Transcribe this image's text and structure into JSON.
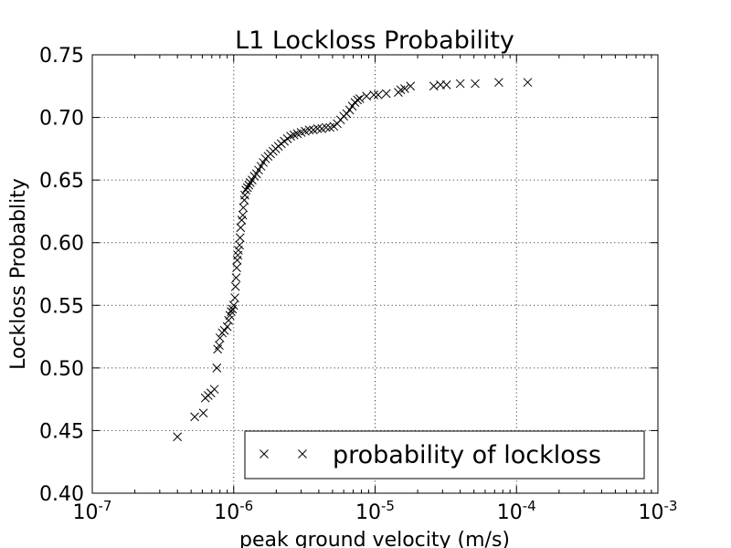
{
  "chart_data": {
    "type": "scatter",
    "title": "L1 Lockloss Probability",
    "xlabel": "peak ground velocity (m/s)",
    "ylabel": "Lockloss Probablity",
    "x_scale": "log",
    "xlim": [
      1e-07,
      0.001
    ],
    "ylim": [
      0.4,
      0.75
    ],
    "x_ticks": [
      {
        "base": "10",
        "exp": "-7"
      },
      {
        "base": "10",
        "exp": "-6"
      },
      {
        "base": "10",
        "exp": "-5"
      },
      {
        "base": "10",
        "exp": "-4"
      },
      {
        "base": "10",
        "exp": "-3"
      }
    ],
    "y_ticks": [
      "0.40",
      "0.45",
      "0.50",
      "0.55",
      "0.60",
      "0.65",
      "0.70",
      "0.75"
    ],
    "grid": true,
    "legend_position": "lower-right",
    "series": [
      {
        "name": "probability of lockloss",
        "marker": "x",
        "color": "#000000",
        "points": [
          [
            4e-07,
            0.445
          ],
          [
            5.3e-07,
            0.461
          ],
          [
            6.1e-07,
            0.464
          ],
          [
            6.3e-07,
            0.476
          ],
          [
            6.6e-07,
            0.478
          ],
          [
            6.9e-07,
            0.48
          ],
          [
            7.3e-07,
            0.483
          ],
          [
            7.6e-07,
            0.5
          ],
          [
            7.7e-07,
            0.515
          ],
          [
            7.9e-07,
            0.518
          ],
          [
            8e-07,
            0.524
          ],
          [
            8.3e-07,
            0.528
          ],
          [
            8.6e-07,
            0.53
          ],
          [
            9e-07,
            0.533
          ],
          [
            9.2e-07,
            0.538
          ],
          [
            9.4e-07,
            0.542
          ],
          [
            9.6e-07,
            0.545
          ],
          [
            9.8e-07,
            0.547
          ],
          [
            1e-06,
            0.55
          ],
          [
            1.02e-06,
            0.556
          ],
          [
            1.03e-06,
            0.565
          ],
          [
            1.04e-06,
            0.572
          ],
          [
            1.05e-06,
            0.58
          ],
          [
            1.06e-06,
            0.586
          ],
          [
            1.07e-06,
            0.59
          ],
          [
            1.08e-06,
            0.594
          ],
          [
            1.1e-06,
            0.598
          ],
          [
            1.11e-06,
            0.604
          ],
          [
            1.12e-06,
            0.612
          ],
          [
            1.14e-06,
            0.618
          ],
          [
            1.16e-06,
            0.622
          ],
          [
            1.17e-06,
            0.628
          ],
          [
            1.19e-06,
            0.634
          ],
          [
            1.2e-06,
            0.638
          ],
          [
            1.22e-06,
            0.642
          ],
          [
            1.25e-06,
            0.644
          ],
          [
            1.28e-06,
            0.646
          ],
          [
            1.31e-06,
            0.648
          ],
          [
            1.35e-06,
            0.65
          ],
          [
            1.4e-06,
            0.653
          ],
          [
            1.45e-06,
            0.655
          ],
          [
            1.5e-06,
            0.658
          ],
          [
            1.56e-06,
            0.661
          ],
          [
            1.62e-06,
            0.664
          ],
          [
            1.68e-06,
            0.667
          ],
          [
            1.75e-06,
            0.669
          ],
          [
            1.82e-06,
            0.671
          ],
          [
            1.9e-06,
            0.673
          ],
          [
            1.98e-06,
            0.675
          ],
          [
            2.07e-06,
            0.677
          ],
          [
            2.17e-06,
            0.679
          ],
          [
            2.28e-06,
            0.681
          ],
          [
            2.4e-06,
            0.683
          ],
          [
            2.53e-06,
            0.685
          ],
          [
            2.67e-06,
            0.686
          ],
          [
            2.82e-06,
            0.687
          ],
          [
            3e-06,
            0.688
          ],
          [
            3.2e-06,
            0.689
          ],
          [
            3.42e-06,
            0.69
          ],
          [
            3.66e-06,
            0.69
          ],
          [
            3.92e-06,
            0.691
          ],
          [
            4.2e-06,
            0.691
          ],
          [
            4.5e-06,
            0.692
          ],
          [
            4.8e-06,
            0.692
          ],
          [
            5.1e-06,
            0.693
          ],
          [
            5.4e-06,
            0.695
          ],
          [
            5.7e-06,
            0.698
          ],
          [
            6e-06,
            0.701
          ],
          [
            6.3e-06,
            0.703
          ],
          [
            6.6e-06,
            0.706
          ],
          [
            6.9e-06,
            0.709
          ],
          [
            7.2e-06,
            0.712
          ],
          [
            7.5e-06,
            0.714
          ],
          [
            7.8e-06,
            0.715
          ],
          [
            8.7e-06,
            0.717
          ],
          [
            9.8e-06,
            0.718
          ],
          [
            1.05e-05,
            0.718
          ],
          [
            1.2e-05,
            0.719
          ],
          [
            1.46e-05,
            0.72
          ],
          [
            1.52e-05,
            0.722
          ],
          [
            1.62e-05,
            0.723
          ],
          [
            1.78e-05,
            0.725
          ],
          [
            2.6e-05,
            0.725
          ],
          [
            2.9e-05,
            0.726
          ],
          [
            3.2e-05,
            0.726
          ],
          [
            4e-05,
            0.727
          ],
          [
            5.1e-05,
            0.727
          ],
          [
            7.5e-05,
            0.728
          ],
          [
            0.00012,
            0.728
          ]
        ]
      }
    ]
  }
}
